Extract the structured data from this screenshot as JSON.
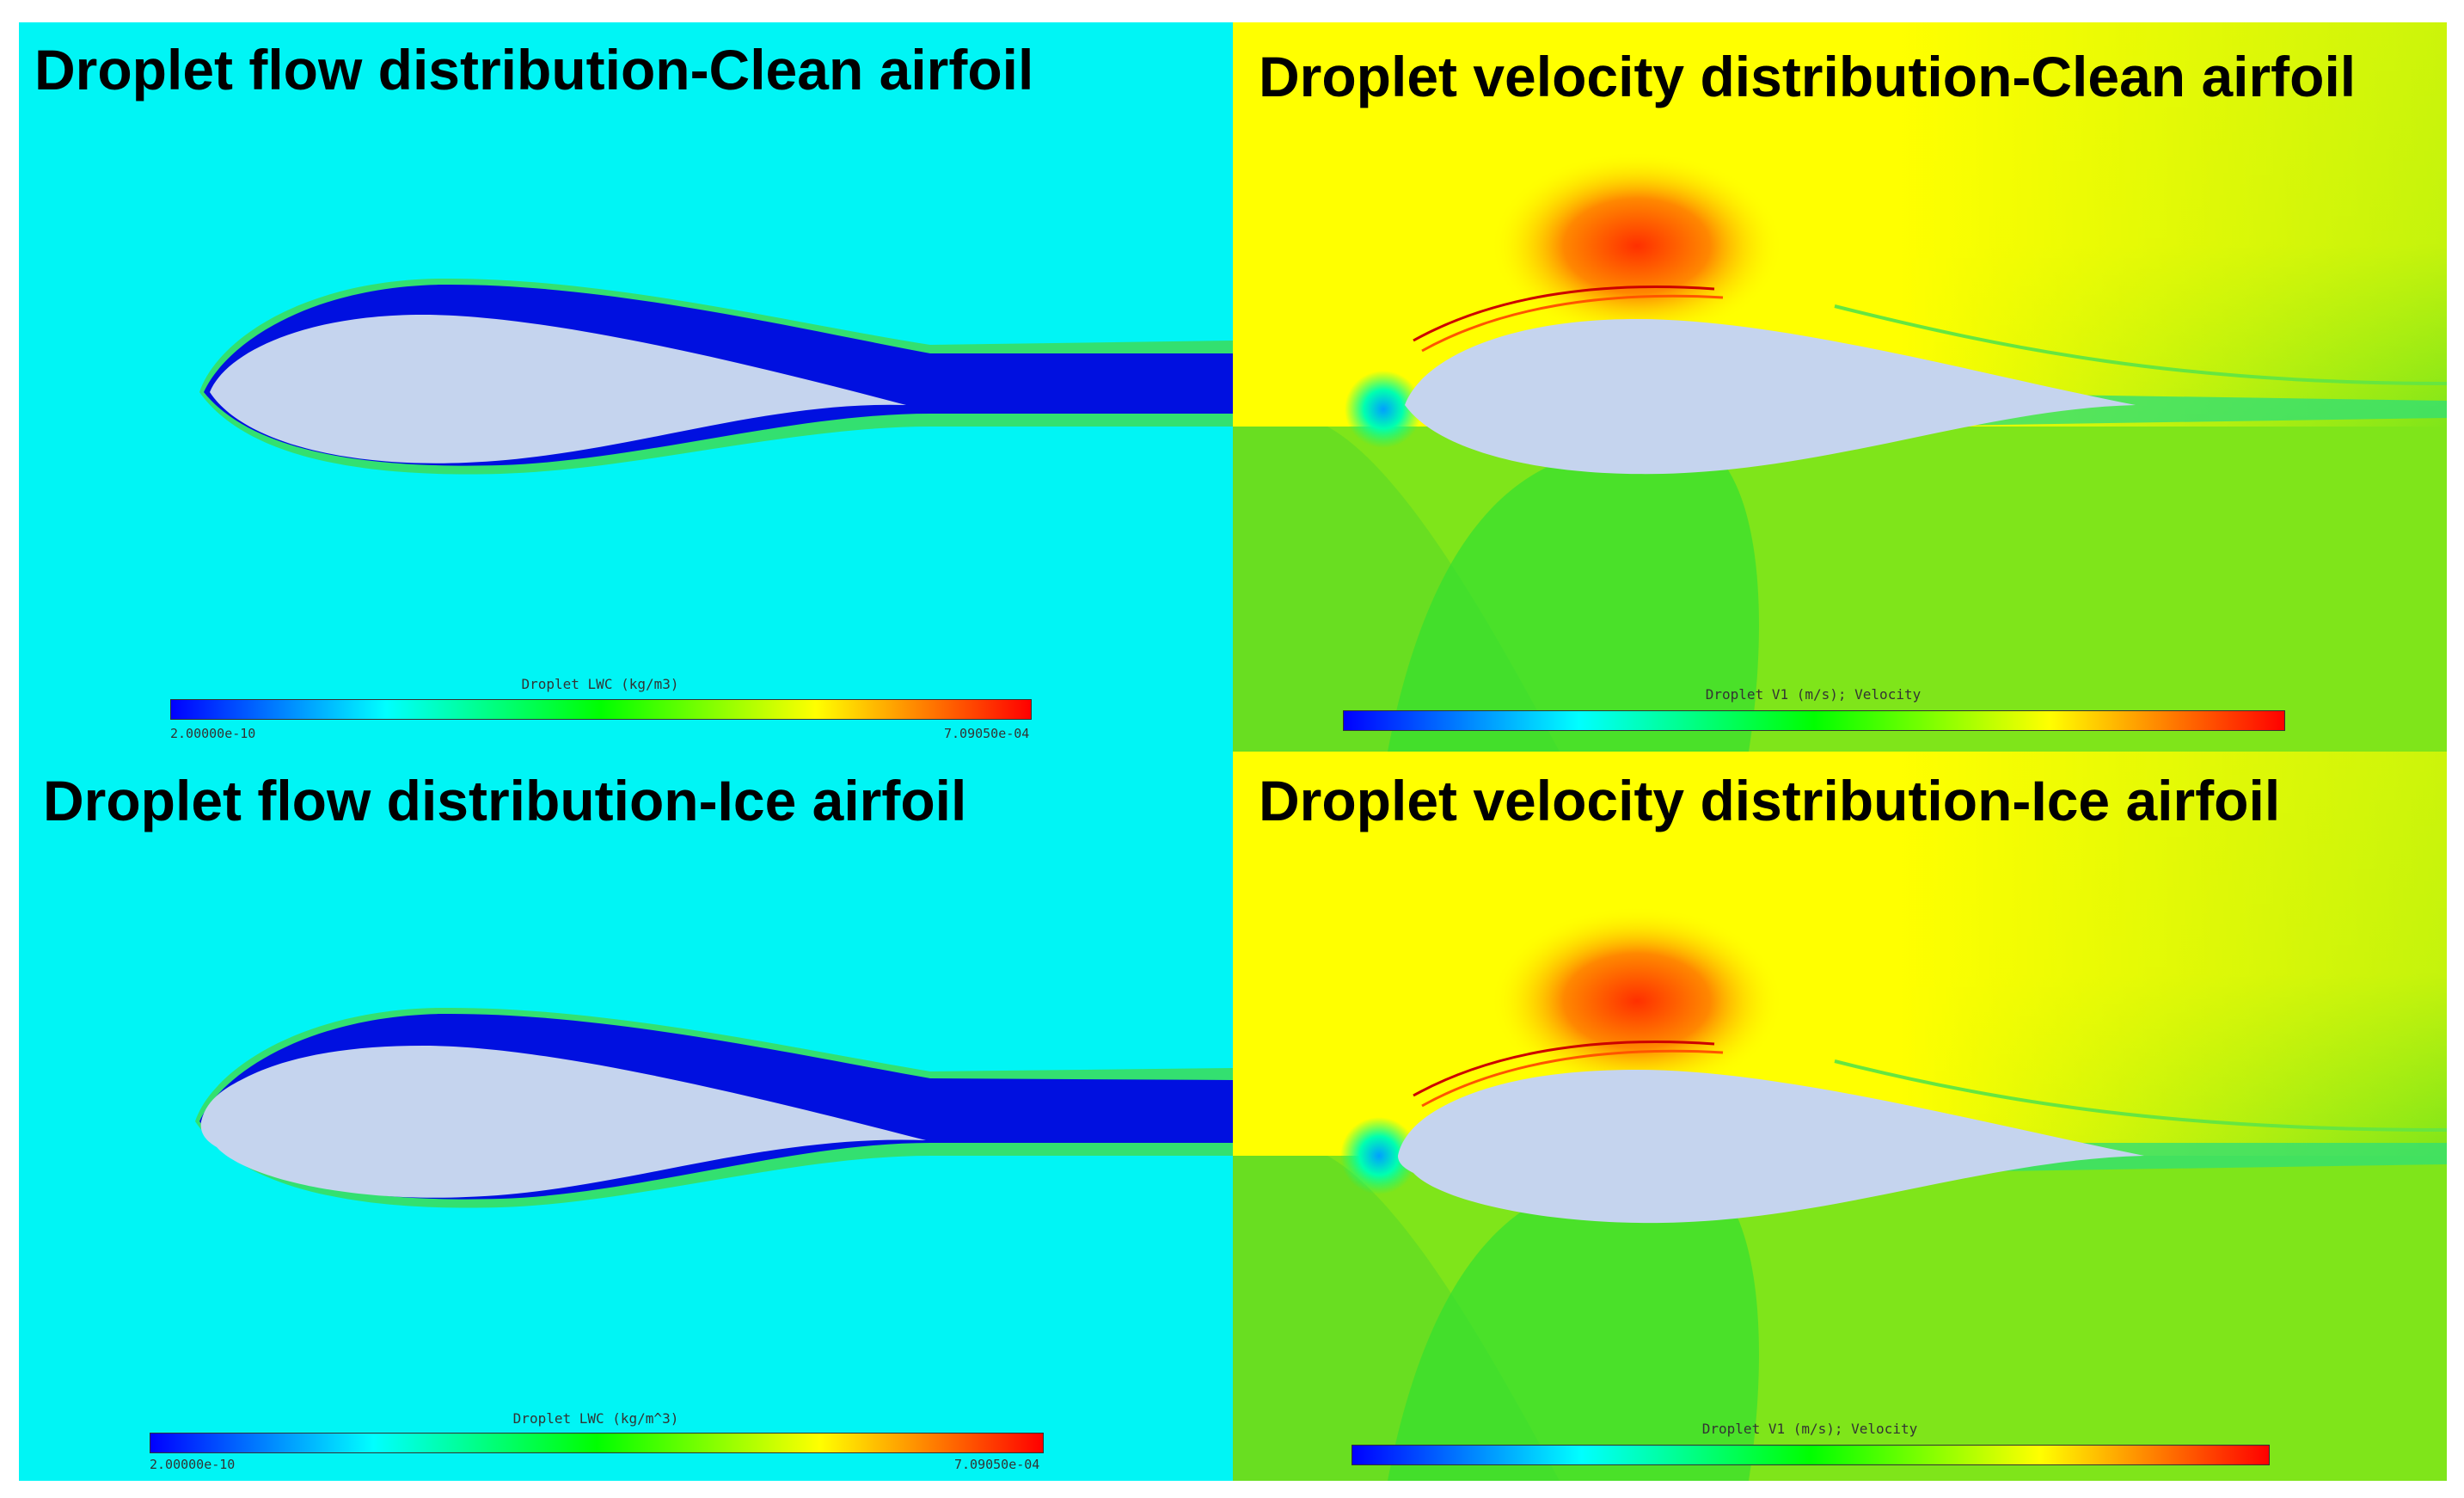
{
  "panels": {
    "flow_clean": {
      "title": "Droplet flow distribution-Clean airfoil",
      "colorbar_label": "Droplet LWC (kg/m3)",
      "tick_min": "2.00000e-10",
      "tick_max": "7.09050e-04"
    },
    "velocity_clean": {
      "title": "Droplet velocity distribution-Clean airfoil",
      "colorbar_label": "Droplet V1 (m/s); Velocity"
    },
    "flow_ice": {
      "title": "Droplet flow distribution-Ice airfoil",
      "colorbar_label": "Droplet LWC (kg/m^3)",
      "tick_min": "2.00000e-10",
      "tick_max": "7.09050e-04"
    },
    "velocity_ice": {
      "title": "Droplet velocity distribution-Ice airfoil",
      "colorbar_label": "Droplet V1 (m/s); Velocity"
    }
  },
  "colors": {
    "flow_background": "#00f5f5",
    "velocity_background": "#7fe51a",
    "velocity_high": "#ffff00",
    "airfoil_fill": "#c5d4ee",
    "shadow_band": "#0010e0"
  },
  "colormap": [
    "#0000ff",
    "#00ffff",
    "#00ff00",
    "#ffff00",
    "#ff0000"
  ]
}
